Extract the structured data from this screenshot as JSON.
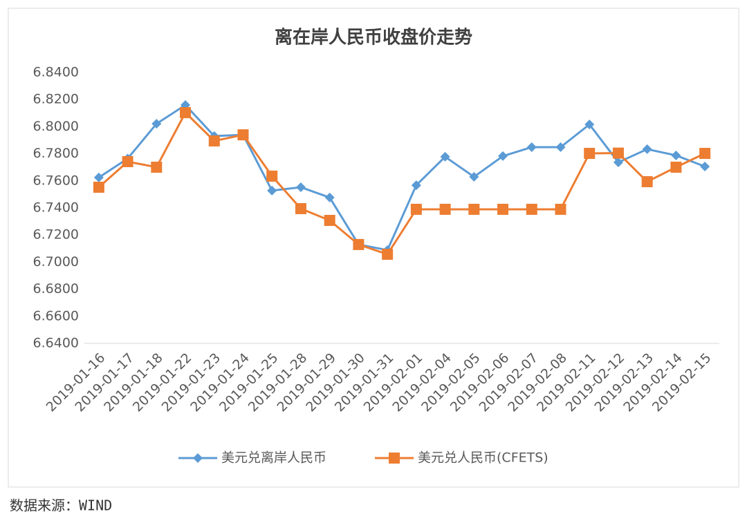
{
  "chart_data": {
    "type": "line",
    "title": "离在岸人民币收盘价走势",
    "categories": [
      "2019-01-16",
      "2019-01-17",
      "2019-01-18",
      "2019-01-22",
      "2019-01-23",
      "2019-01-24",
      "2019-01-25",
      "2019-01-28",
      "2019-01-29",
      "2019-01-30",
      "2019-01-31",
      "2019-02-01",
      "2019-02-04",
      "2019-02-05",
      "2019-02-06",
      "2019-02-07",
      "2019-02-08",
      "2019-02-11",
      "2019-02-12",
      "2019-02-13",
      "2019-02-14",
      "2019-02-15"
    ],
    "series": [
      {
        "name": "美元兑离岸人民币",
        "color": "#5b9bd5",
        "marker": "diamond",
        "values": [
          6.7625,
          6.7765,
          6.8022,
          6.816,
          6.7931,
          6.794,
          6.7528,
          6.7553,
          6.7477,
          6.713,
          6.7089,
          6.7568,
          6.7778,
          6.763,
          6.7783,
          6.7849,
          6.7849,
          6.8017,
          6.7737,
          6.7834,
          6.7788,
          6.7706
        ]
      },
      {
        "name": "美元兑人民币(CFETS)",
        "color": "#ed7d31",
        "marker": "square",
        "values": [
          6.7553,
          6.7742,
          6.7701,
          6.8104,
          6.7895,
          6.794,
          6.7635,
          6.7395,
          6.7308,
          6.713,
          6.7058,
          6.739,
          6.739,
          6.739,
          6.739,
          6.739,
          6.739,
          6.7803,
          6.7805,
          6.7594,
          6.7701,
          6.7803
        ]
      }
    ],
    "ylim": [
      6.64,
      6.84
    ],
    "yticks": [
      {
        "value": 6.64,
        "label": "6.6400"
      },
      {
        "value": 6.66,
        "label": "6.6600"
      },
      {
        "value": 6.68,
        "label": "6.6800"
      },
      {
        "value": 6.7,
        "label": "6.7000"
      },
      {
        "value": 6.72,
        "label": "6.7200"
      },
      {
        "value": 6.74,
        "label": "6.7400"
      },
      {
        "value": 6.76,
        "label": "6.7600"
      },
      {
        "value": 6.78,
        "label": "6.7800"
      },
      {
        "value": 6.8,
        "label": "6.8000"
      },
      {
        "value": 6.82,
        "label": "6.8200"
      },
      {
        "value": 6.84,
        "label": "6.8400"
      }
    ],
    "grid": false,
    "legend": "bottom"
  },
  "source": "数据来源：WIND"
}
